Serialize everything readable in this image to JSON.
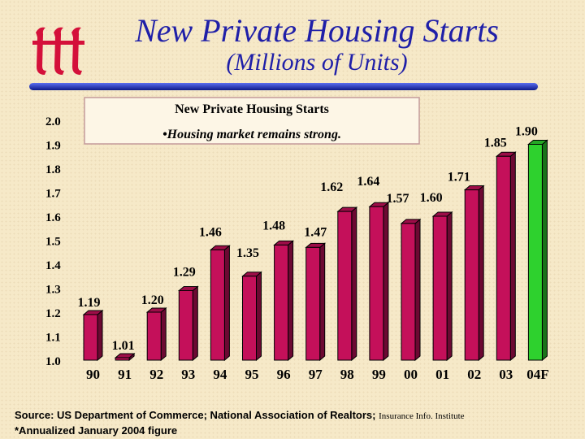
{
  "header": {
    "title": "New Private Housing Starts",
    "subtitle": "(Millions of Units)"
  },
  "colors": {
    "title": "#1f1fa8",
    "bar": "#c4105a",
    "bar_highlight": "#2ed12e",
    "rule": "#1f2fb8"
  },
  "chart_data": {
    "type": "bar",
    "title": "New Private Housing Starts",
    "annotation": "•Housing market remains strong.",
    "categories": [
      "90",
      "91",
      "92",
      "93",
      "94",
      "95",
      "96",
      "97",
      "98",
      "99",
      "00",
      "01",
      "02",
      "03",
      "04F"
    ],
    "values": [
      1.19,
      1.01,
      1.2,
      1.29,
      1.46,
      1.35,
      1.48,
      1.47,
      1.62,
      1.64,
      1.57,
      1.6,
      1.71,
      1.85,
      1.9
    ],
    "value_labels": [
      "1.19",
      "1.01",
      "1.20",
      "1.29",
      "1.46",
      "1.35",
      "1.48",
      "1.47",
      "1.62",
      "1.64",
      "1.57",
      "1.60",
      "1.71",
      "1.85",
      "1.90"
    ],
    "highlight_category": "04F",
    "ylim": [
      1.0,
      2.0
    ],
    "yticks": [
      "1.0",
      "1.1",
      "1.2",
      "1.3",
      "1.4",
      "1.5",
      "1.6",
      "1.7",
      "1.8",
      "1.9",
      "2.0"
    ],
    "xlabel": "",
    "ylabel": "",
    "grid": false
  },
  "footer": {
    "source": "Source: US Department of Commerce; National Association of Realtors;",
    "institute": "Insurance Info. Institute",
    "note": "*Annualized January 2004 figure"
  }
}
